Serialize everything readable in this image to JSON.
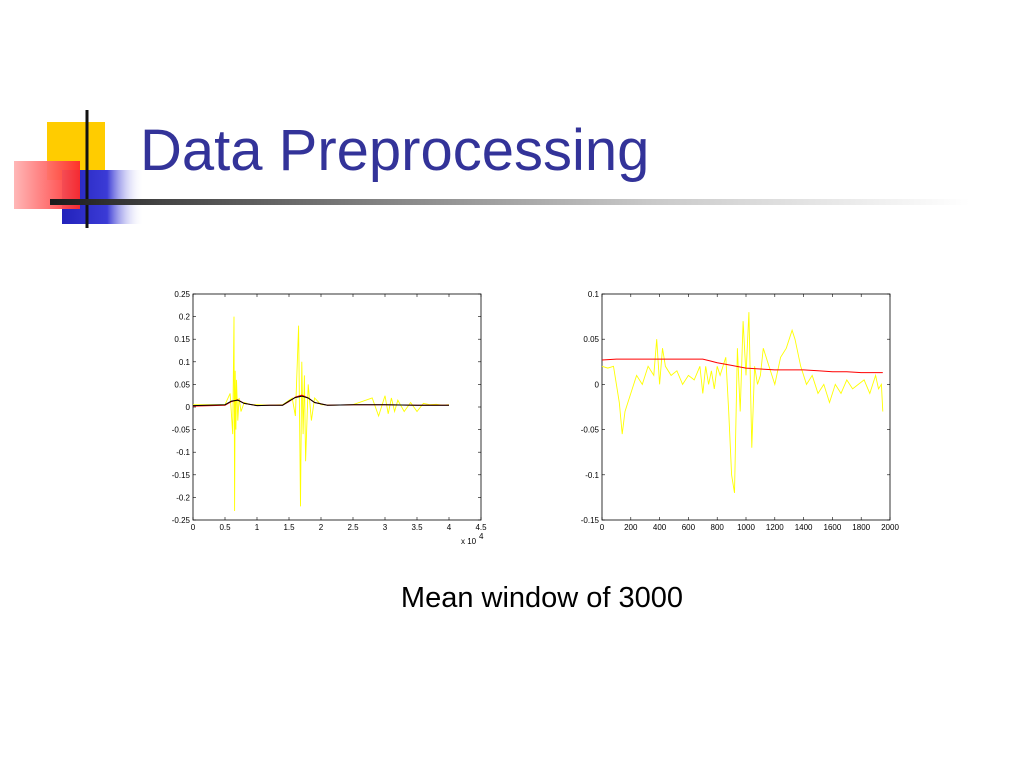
{
  "slide": {
    "title": "Data Preprocessing",
    "caption": "Mean window of 3000"
  },
  "colors": {
    "title": "#333399",
    "logo_yellow": "#ffcc00",
    "logo_red": "#ff3333",
    "logo_blue": "#3333cc",
    "signal": "#ffff00",
    "mean": "#ff0000"
  },
  "chart_data": [
    {
      "type": "line",
      "title": "",
      "xlabel": "",
      "ylabel": "",
      "x_multiplier_label": "x 10",
      "x_multiplier_exponent": "4",
      "xlim": [
        0,
        4.5
      ],
      "ylim": [
        -0.25,
        0.25
      ],
      "x_ticks": [
        "0",
        "0.5",
        "1",
        "1.5",
        "2",
        "2.5",
        "3",
        "3.5",
        "4",
        "4.5"
      ],
      "y_ticks": [
        "0.25",
        "0.2",
        "0.15",
        "0.1",
        "0.05",
        "0",
        "-0.05",
        "-0.1",
        "-0.15",
        "-0.2",
        "-0.25"
      ],
      "grid": false,
      "series": [
        {
          "color": "#ffff00",
          "x": [
            0,
            0.5,
            0.58,
            0.62,
            0.64,
            0.65,
            0.66,
            0.67,
            0.68,
            0.7,
            0.72,
            0.75,
            0.8,
            0.9,
            1.0,
            1.2,
            1.4,
            1.55,
            1.6,
            1.65,
            1.68,
            1.7,
            1.72,
            1.74,
            1.76,
            1.8,
            1.85,
            1.9,
            2.0,
            2.2,
            2.5,
            2.8,
            2.9,
            3.0,
            3.05,
            3.1,
            3.15,
            3.2,
            3.3,
            3.4,
            3.5,
            3.6,
            3.7,
            3.8,
            3.9,
            4.0
          ],
          "y": [
            0.005,
            0.005,
            0.03,
            -0.06,
            0.2,
            -0.23,
            0.08,
            -0.05,
            0.06,
            -0.03,
            0.02,
            -0.01,
            0.01,
            0.005,
            0.005,
            0.004,
            0.005,
            0.02,
            -0.02,
            0.18,
            -0.22,
            0.1,
            -0.06,
            0.07,
            -0.12,
            0.05,
            -0.03,
            0.02,
            0.005,
            0.004,
            0.005,
            0.02,
            -0.02,
            0.025,
            -0.015,
            0.02,
            -0.01,
            0.015,
            -0.01,
            0.01,
            -0.01,
            0.008,
            0.005,
            0.006,
            0.004,
            0.005
          ]
        },
        {
          "color": "#ff0000",
          "x": [
            0,
            0.5,
            0.6,
            0.7,
            0.8,
            1.0,
            1.2,
            1.4,
            1.5,
            1.6,
            1.7,
            1.8,
            1.9,
            2.1,
            2.5,
            3.0,
            3.5,
            4.0
          ],
          "y": [
            0.002,
            0.004,
            0.012,
            0.016,
            0.008,
            0.003,
            0.004,
            0.004,
            0.012,
            0.022,
            0.026,
            0.02,
            0.01,
            0.004,
            0.005,
            0.005,
            0.004,
            0.004
          ]
        },
        {
          "color": "#000000",
          "x": [
            0,
            0.5,
            0.6,
            0.7,
            0.8,
            1.0,
            1.2,
            1.4,
            1.5,
            1.6,
            1.7,
            1.8,
            1.9,
            2.1,
            2.5,
            3.0,
            3.5,
            4.0
          ],
          "y": [
            0.003,
            0.005,
            0.013,
            0.015,
            0.008,
            0.003,
            0.004,
            0.004,
            0.013,
            0.021,
            0.024,
            0.02,
            0.01,
            0.004,
            0.005,
            0.005,
            0.004,
            0.004
          ]
        }
      ]
    },
    {
      "type": "line",
      "title": "",
      "xlabel": "",
      "ylabel": "",
      "xlim": [
        0,
        2000
      ],
      "ylim": [
        -0.15,
        0.1
      ],
      "x_ticks": [
        "0",
        "200",
        "400",
        "600",
        "800",
        "1000",
        "1200",
        "1400",
        "1600",
        "1800",
        "2000"
      ],
      "y_ticks": [
        "0.1",
        "0.05",
        "0",
        "-0.05",
        "-0.1",
        "-0.15"
      ],
      "grid": false,
      "series": [
        {
          "color": "#ffff00",
          "x": [
            0,
            40,
            80,
            120,
            140,
            160,
            200,
            240,
            280,
            320,
            360,
            380,
            400,
            420,
            440,
            480,
            520,
            560,
            600,
            640,
            680,
            700,
            720,
            740,
            760,
            780,
            800,
            820,
            860,
            880,
            900,
            920,
            940,
            960,
            980,
            1000,
            1020,
            1040,
            1060,
            1080,
            1100,
            1120,
            1160,
            1200,
            1240,
            1280,
            1320,
            1340,
            1380,
            1420,
            1460,
            1500,
            1540,
            1580,
            1620,
            1660,
            1700,
            1740,
            1780,
            1820,
            1860,
            1900,
            1920,
            1940,
            1950
          ],
          "y": [
            0.02,
            0.018,
            0.02,
            -0.02,
            -0.055,
            -0.03,
            -0.01,
            0.01,
            0.0,
            0.02,
            0.01,
            0.05,
            0.0,
            0.04,
            0.02,
            0.01,
            0.015,
            0.0,
            0.01,
            0.005,
            0.02,
            -0.01,
            0.02,
            0.0,
            0.015,
            -0.005,
            0.02,
            0.01,
            0.03,
            -0.03,
            -0.1,
            -0.12,
            0.04,
            -0.03,
            0.07,
            0.01,
            0.08,
            -0.07,
            0.02,
            0.0,
            0.01,
            0.04,
            0.02,
            0.0,
            0.03,
            0.04,
            0.06,
            0.05,
            0.02,
            0.0,
            0.01,
            -0.01,
            0.0,
            -0.02,
            0.0,
            -0.01,
            0.005,
            -0.005,
            0.0,
            0.005,
            -0.01,
            0.01,
            -0.005,
            0.0,
            -0.03
          ]
        },
        {
          "color": "#ff0000",
          "x": [
            0,
            100,
            200,
            300,
            400,
            500,
            600,
            700,
            750,
            800,
            900,
            1000,
            1100,
            1200,
            1300,
            1400,
            1500,
            1600,
            1700,
            1800,
            1900,
            1950
          ],
          "y": [
            0.027,
            0.028,
            0.028,
            0.028,
            0.028,
            0.028,
            0.028,
            0.028,
            0.026,
            0.024,
            0.021,
            0.018,
            0.017,
            0.016,
            0.016,
            0.016,
            0.015,
            0.014,
            0.014,
            0.013,
            0.013,
            0.013
          ]
        }
      ]
    }
  ]
}
